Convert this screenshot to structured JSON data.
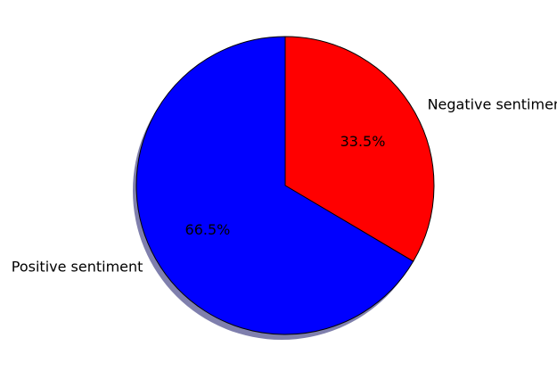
{
  "chart_data": {
    "type": "pie",
    "slices": [
      {
        "label": "Negative sentiment",
        "value": 33.5,
        "pct_label": "33.5%",
        "color": "#ff0000"
      },
      {
        "label": "Positive sentiment",
        "value": 66.5,
        "pct_label": "66.5%",
        "color": "#0000ff"
      }
    ],
    "start_angle_deg": 90,
    "direction": "clockwise",
    "shadow": true,
    "shadow_color": "#7f7fad",
    "edge_color": "#000000"
  }
}
